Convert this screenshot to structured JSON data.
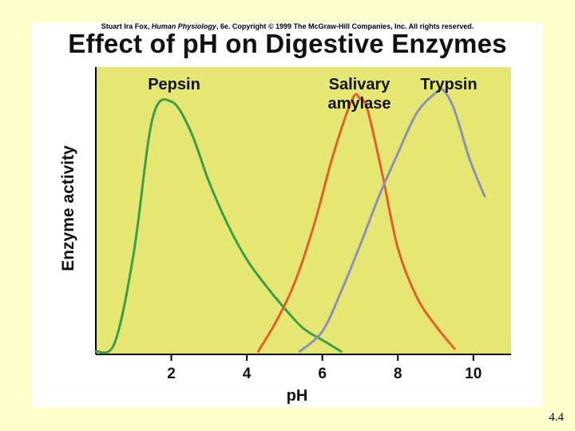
{
  "copyright": {
    "author": "Stuart Ira Fox, ",
    "book": "Human Physiology",
    "rest": ", 6e. Copyright © 1999 The McGraw-Hill Companies, Inc.  All rights reserved."
  },
  "slide_number": "4.4",
  "chart_data": {
    "type": "line",
    "title": "Effect of pH on Digestive Enzymes",
    "xlabel": "pH",
    "ylabel": "Enzyme activity",
    "xlim": [
      0,
      11
    ],
    "ylim": [
      0,
      100
    ],
    "xticks": [
      2,
      4,
      6,
      8,
      10
    ],
    "xtick_labels": [
      "2",
      "4",
      "6",
      "8",
      "10"
    ],
    "background": "#e6e673",
    "series": [
      {
        "name": "Pepsin",
        "label_lines": [
          "Pepsin"
        ],
        "color": "#3a9e4a",
        "x": [
          0,
          0.5,
          1.0,
          1.5,
          2.0,
          2.5,
          3.0,
          3.5,
          4.0,
          4.5,
          5.0,
          5.5,
          6.0,
          6.5
        ],
        "y": [
          1,
          4,
          35,
          82,
          88,
          78,
          60,
          45,
          33,
          24,
          16,
          9,
          5,
          1
        ]
      },
      {
        "name": "Salivary amylase",
        "label_lines": [
          "Salivary",
          "amylase"
        ],
        "color": "#e0602a",
        "x": [
          4.3,
          4.8,
          5.3,
          5.8,
          6.3,
          6.8,
          7.0,
          7.2,
          7.6,
          8.0,
          8.5,
          9.0,
          9.5
        ],
        "y": [
          1,
          12,
          26,
          46,
          70,
          89,
          89,
          85,
          62,
          37,
          20,
          10,
          2
        ]
      },
      {
        "name": "Trypsin",
        "label_lines": [
          "Trypsin"
        ],
        "color": "#8a93b5",
        "x": [
          5.4,
          6.0,
          6.5,
          7.0,
          7.5,
          8.0,
          8.5,
          9.0,
          9.2,
          9.5,
          9.9,
          10.3
        ],
        "y": [
          1,
          8,
          22,
          38,
          55,
          70,
          84,
          91,
          92,
          85,
          68,
          55
        ]
      }
    ]
  }
}
